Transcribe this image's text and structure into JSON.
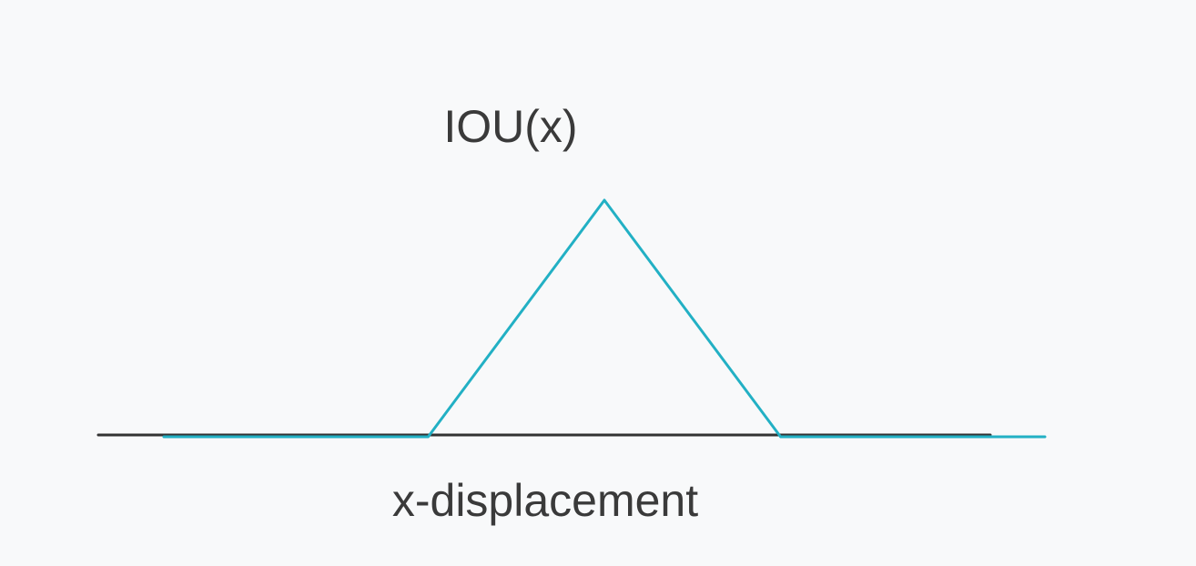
{
  "chart_data": {
    "type": "line",
    "title": "IOU(x)",
    "xlabel": "x-displacement",
    "ylabel": "",
    "grid": false,
    "legend": "none",
    "series": [
      {
        "x": [
          -1.0,
          -0.6,
          -0.4,
          0.0,
          0.4,
          0.6,
          1.0
        ],
        "y": [
          0,
          0,
          0,
          1,
          0,
          0,
          0
        ]
      }
    ],
    "colors": {
      "axis": "#333333",
      "curve": "#22b0c4",
      "background": "#f8f9fa",
      "text": "#3a3a3a"
    }
  }
}
